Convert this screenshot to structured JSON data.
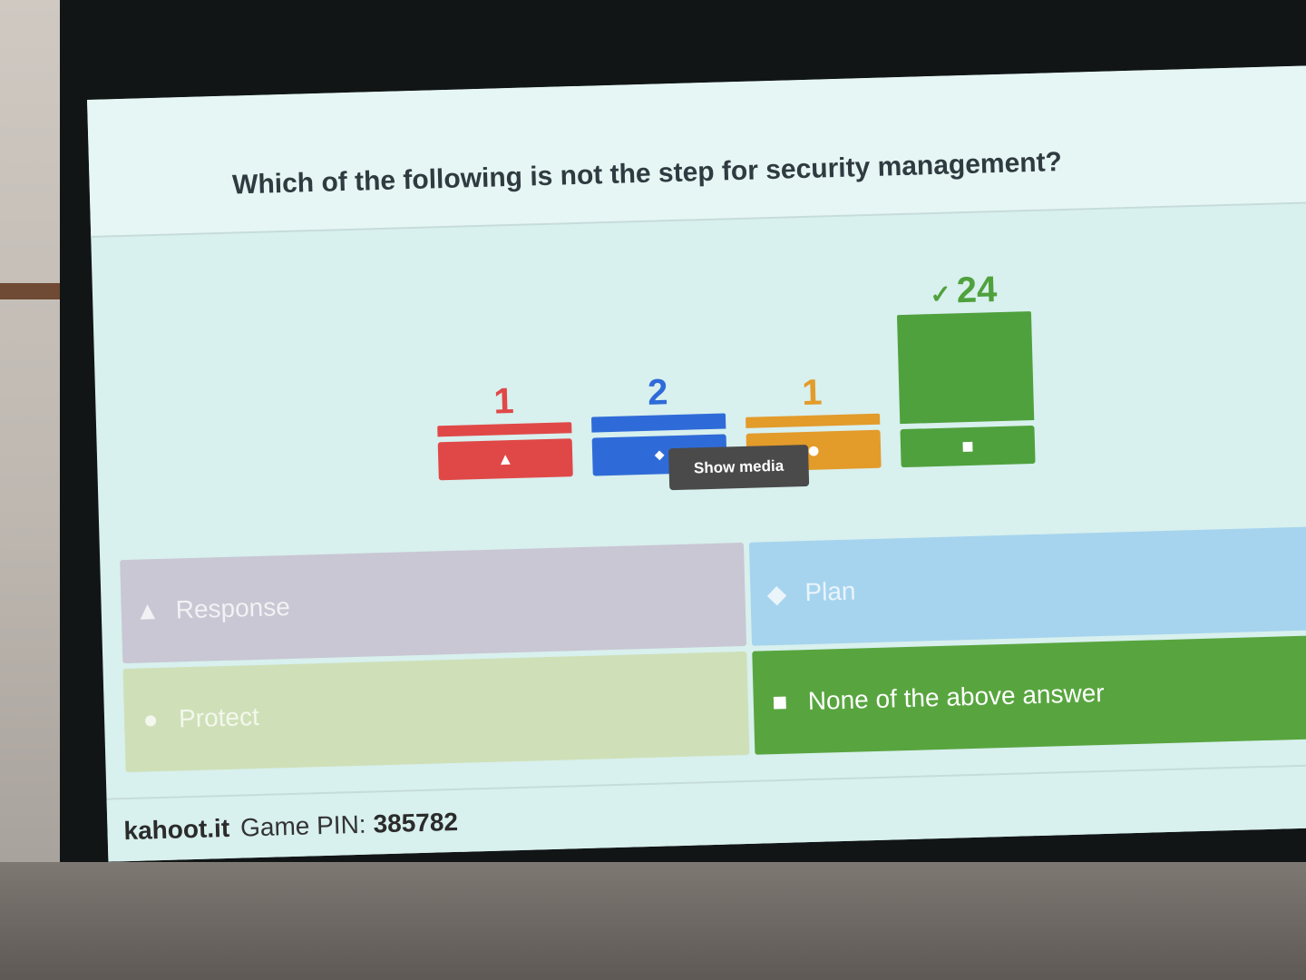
{
  "question": "Which of the following is not the step for security management?",
  "chart_data": {
    "type": "bar",
    "categories": [
      "Response",
      "Plan",
      "Protect",
      "None of the above answer"
    ],
    "values": [
      1,
      2,
      1,
      24
    ],
    "correct_index": 3,
    "colors": [
      "#e04848",
      "#2f6bd8",
      "#e39b2a",
      "#4fa13d"
    ],
    "shape_icons": [
      "triangle-icon",
      "diamond-icon",
      "circle-icon",
      "square-icon"
    ]
  },
  "counts": {
    "response": "1",
    "plan": "2",
    "protect": "1",
    "none": "24",
    "correct_check": "✓"
  },
  "show_media_label": "Show media",
  "answers": [
    {
      "label": "Response",
      "color": "#c9c7d3",
      "shape": "triangle-icon",
      "glyph": "▲"
    },
    {
      "label": "Plan",
      "color": "#a6d4ee",
      "shape": "diamond-icon",
      "glyph": "◆"
    },
    {
      "label": "Protect",
      "color": "#cfe0b8",
      "shape": "circle-icon",
      "glyph": "●"
    },
    {
      "label": "None of the above answer",
      "color": "#58a53f",
      "shape": "square-icon",
      "glyph": "■"
    }
  ],
  "base_glyphs": {
    "triangle": "▲",
    "diamond": "◆",
    "circle": "●",
    "square": "■"
  },
  "footer": {
    "brand": "kahoot.it",
    "pin_label": "Game PIN:",
    "pin": "385782"
  },
  "laser_glyph": "↗"
}
